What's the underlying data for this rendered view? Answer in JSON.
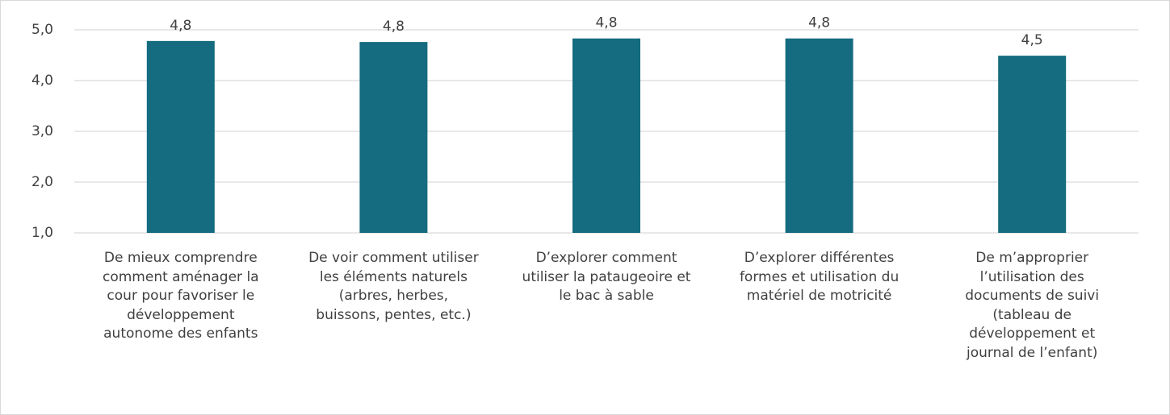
{
  "chart_data": {
    "type": "bar",
    "categories": [
      "De mieux comprendre comment aménager la cour pour favoriser le développement autonome des enfants",
      "De voir comment utiliser les éléments naturels (arbres, herbes, buissons, pentes, etc.)",
      "D’explorer comment utiliser la pataugeoire et le bac à sable",
      "D’explorer différentes formes et utilisation du matériel de motricité",
      "De m’approprier l’utilisation des documents de suivi (tableau de développement et journal de l’enfant)"
    ],
    "values": [
      4.78,
      4.76,
      4.83,
      4.83,
      4.49
    ],
    "value_labels": [
      "4,8",
      "4,8",
      "4,8",
      "4,8",
      "4,5"
    ],
    "color": "#156b80",
    "ylim": [
      1,
      5
    ],
    "yticks": [
      {
        "value": 1,
        "label": "1,0"
      },
      {
        "value": 2,
        "label": "2,0"
      },
      {
        "value": 3,
        "label": "3,0"
      },
      {
        "value": 4,
        "label": "4,0"
      },
      {
        "value": 5,
        "label": "5,0"
      }
    ],
    "grid": true
  }
}
